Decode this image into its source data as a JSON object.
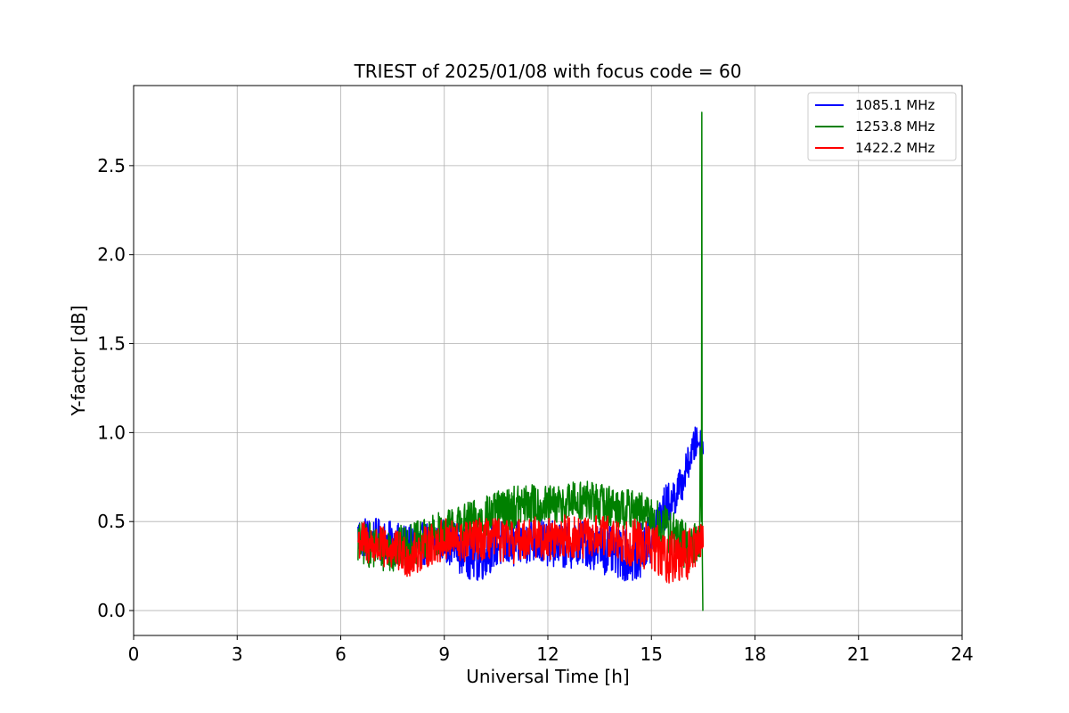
{
  "chart_data": {
    "type": "line",
    "title": "TRIEST of 2025/01/08 with focus code = 60",
    "xlabel": "Universal Time [h]",
    "ylabel": "Y-factor [dB]",
    "xlim": [
      0,
      24
    ],
    "ylim": [
      -0.14,
      2.95
    ],
    "xticks": [
      "0",
      "3",
      "6",
      "9",
      "12",
      "15",
      "18",
      "21",
      "24"
    ],
    "yticks": [
      "0.0",
      "0.5",
      "1.0",
      "1.5",
      "2.0",
      "2.5"
    ],
    "grid": true,
    "legend_position": "top-right",
    "series": [
      {
        "name": "1085.1 MHz",
        "color": "#0000ff",
        "x": [
          6.5,
          7.0,
          7.5,
          8.0,
          8.5,
          9.0,
          9.5,
          10.0,
          10.5,
          11.0,
          11.5,
          12.0,
          12.5,
          13.0,
          13.5,
          14.0,
          14.5,
          15.0,
          15.3,
          15.6,
          15.9,
          16.1,
          16.3,
          16.5
        ],
        "y": [
          0.42,
          0.4,
          0.38,
          0.36,
          0.38,
          0.4,
          0.35,
          0.3,
          0.38,
          0.36,
          0.4,
          0.38,
          0.36,
          0.38,
          0.35,
          0.32,
          0.3,
          0.4,
          0.55,
          0.62,
          0.72,
          0.85,
          0.95,
          0.95
        ],
        "amp": [
          0.12,
          0.12,
          0.12,
          0.12,
          0.12,
          0.12,
          0.15,
          0.15,
          0.14,
          0.13,
          0.13,
          0.13,
          0.13,
          0.13,
          0.14,
          0.14,
          0.15,
          0.15,
          0.14,
          0.12,
          0.1,
          0.1,
          0.1,
          0.08
        ]
      },
      {
        "name": "1253.8 MHz",
        "color": "#008000",
        "x": [
          6.5,
          7.0,
          7.5,
          8.0,
          8.5,
          9.0,
          9.5,
          10.0,
          10.5,
          11.0,
          11.5,
          12.0,
          12.5,
          13.0,
          13.5,
          14.0,
          14.5,
          15.0,
          15.5,
          16.0,
          16.4,
          16.45,
          16.5
        ],
        "y": [
          0.38,
          0.36,
          0.34,
          0.36,
          0.4,
          0.45,
          0.48,
          0.5,
          0.55,
          0.58,
          0.6,
          0.58,
          0.6,
          0.62,
          0.6,
          0.58,
          0.56,
          0.52,
          0.45,
          0.35,
          0.4,
          2.8,
          0.0
        ],
        "amp": [
          0.12,
          0.13,
          0.13,
          0.13,
          0.12,
          0.12,
          0.12,
          0.13,
          0.12,
          0.12,
          0.12,
          0.12,
          0.12,
          0.12,
          0.12,
          0.12,
          0.12,
          0.12,
          0.14,
          0.15,
          0.1,
          0,
          0
        ]
      },
      {
        "name": "1422.2 MHz",
        "color": "#ff0000",
        "x": [
          6.5,
          7.0,
          7.5,
          8.0,
          8.5,
          9.0,
          9.5,
          10.0,
          10.5,
          11.0,
          11.5,
          12.0,
          12.5,
          13.0,
          13.5,
          14.0,
          14.5,
          15.0,
          15.5,
          16.0,
          16.5
        ],
        "y": [
          0.4,
          0.36,
          0.34,
          0.3,
          0.36,
          0.4,
          0.38,
          0.4,
          0.4,
          0.38,
          0.42,
          0.4,
          0.42,
          0.4,
          0.42,
          0.4,
          0.38,
          0.36,
          0.3,
          0.3,
          0.42
        ],
        "amp": [
          0.12,
          0.12,
          0.12,
          0.12,
          0.12,
          0.12,
          0.12,
          0.12,
          0.12,
          0.12,
          0.12,
          0.12,
          0.12,
          0.12,
          0.12,
          0.12,
          0.14,
          0.14,
          0.15,
          0.15,
          0.1
        ]
      }
    ]
  }
}
